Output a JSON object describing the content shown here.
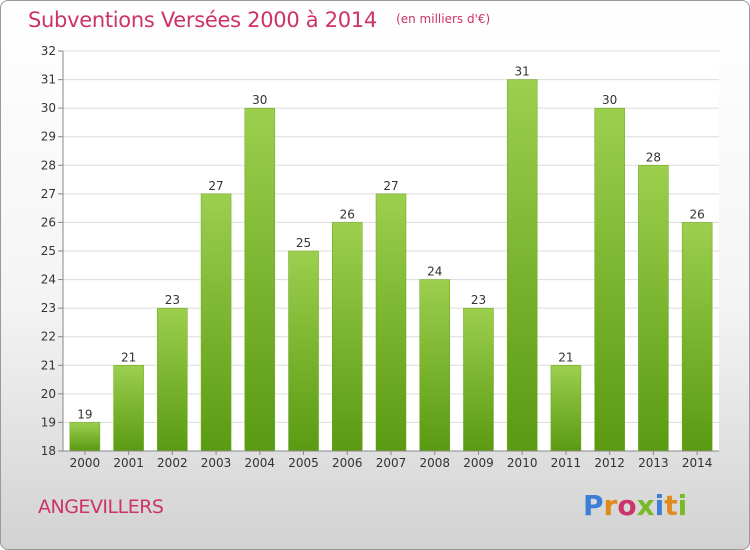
{
  "header": {
    "title": "Subventions Versées 2000 à 2014",
    "subtitle": "(en milliers d'€)"
  },
  "footer": {
    "commune": "ANGEVILLERS",
    "logo": "Proxiti"
  },
  "colors": {
    "bar_top": "#9ccf4e",
    "bar_bottom": "#5a9a12",
    "accent_text": "#cc3366",
    "logo_letters": [
      "#3d7fd6",
      "#e08a1e",
      "#cc3366",
      "#7aba28",
      "#3d7fd6",
      "#e08a1e",
      "#7aba28"
    ]
  },
  "chart_data": {
    "type": "bar",
    "categories": [
      "2000",
      "2001",
      "2002",
      "2003",
      "2004",
      "2005",
      "2006",
      "2007",
      "2008",
      "2009",
      "2010",
      "2011",
      "2012",
      "2013",
      "2014"
    ],
    "values": [
      19,
      21,
      23,
      27,
      30,
      25,
      26,
      27,
      24,
      23,
      31,
      21,
      30,
      28,
      26
    ],
    "ylim": [
      18,
      32
    ],
    "yticks": [
      18,
      19,
      20,
      21,
      22,
      23,
      24,
      25,
      26,
      27,
      28,
      29,
      30,
      31,
      32
    ],
    "grid": true,
    "data_labels": true
  }
}
